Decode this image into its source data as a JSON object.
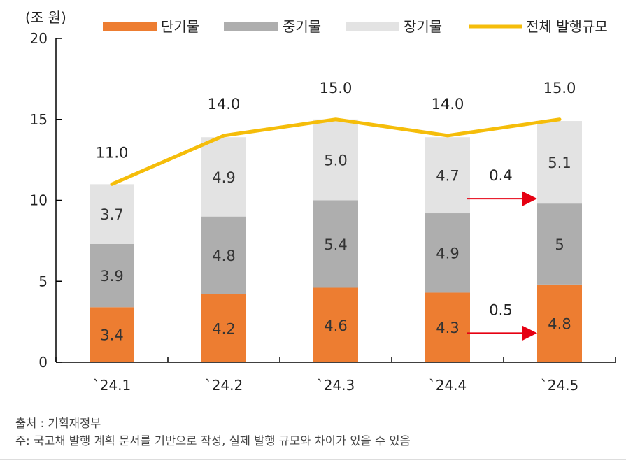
{
  "chart_data": {
    "type": "bar",
    "stacked": true,
    "unit_label": "(조 원)",
    "categories": [
      "`24.1",
      "`24.2",
      "`24.3",
      "`24.4",
      "`24.5"
    ],
    "series": [
      {
        "name": "단기물",
        "color": "#ED7D31",
        "values": [
          3.4,
          4.2,
          4.6,
          4.3,
          4.8
        ],
        "labels": [
          "3.4",
          "4.2",
          "4.6",
          "4.3",
          "4.8"
        ]
      },
      {
        "name": "중기물",
        "color": "#AEAEAE",
        "values": [
          3.9,
          4.8,
          5.4,
          4.9,
          5.0
        ],
        "labels": [
          "3.9",
          "4.8",
          "5.4",
          "4.9",
          "5"
        ]
      },
      {
        "name": "장기물",
        "color": "#E3E3E3",
        "values": [
          3.7,
          4.9,
          5.0,
          4.7,
          5.1
        ],
        "labels": [
          "3.7",
          "4.9",
          "5.0",
          "4.7",
          "5.1"
        ]
      }
    ],
    "total_line": {
      "name": "전체 발행규모",
      "color": "#F5BD0A",
      "values": [
        11.0,
        14.0,
        15.0,
        14.0,
        15.0
      ],
      "labels": [
        "11.0",
        "14.0",
        "15.0",
        "14.0",
        "15.0"
      ]
    },
    "ylim": [
      0,
      20
    ],
    "yticks": [
      0,
      5,
      10,
      15,
      20
    ],
    "grid": false,
    "legend_position": "top",
    "annotations": [
      {
        "text": "0.4",
        "from_category": "`24.4",
        "to_category": "`24.5",
        "at_value": 10.1,
        "arrow_color": "#E60012"
      },
      {
        "text": "0.5",
        "from_category": "`24.4",
        "to_category": "`24.5",
        "at_value": 1.8,
        "arrow_color": "#E60012"
      }
    ]
  },
  "notes": {
    "source": "출처 : 기획재정부",
    "note": "주: 국고채 발행 계획 문서를 기반으로 작성, 실제 발행 규모와 차이가 있을 수 있음"
  }
}
